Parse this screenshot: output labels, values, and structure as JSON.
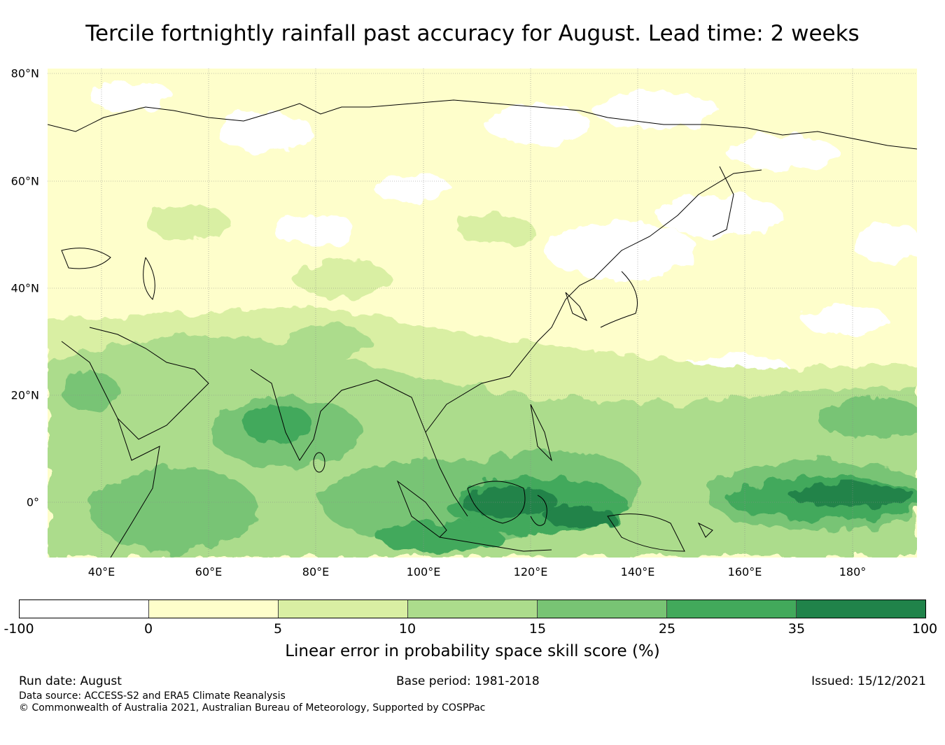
{
  "title": "Tercile fortnightly rainfall past accuracy for August. Lead time: 2 weeks",
  "map": {
    "region": "Asia and western Pacific",
    "lat_labels": [
      "80°N",
      "60°N",
      "40°N",
      "20°N",
      "0°"
    ],
    "lon_labels": [
      "40°E",
      "60°E",
      "80°E",
      "100°E",
      "120°E",
      "140°E",
      "160°E",
      "180°"
    ],
    "field_summary": "Highest skill (25-100%) over the Maritime Continent and central equatorial Pacific; moderate skill (10-25%) over India, Bay of Bengal and western Indian Ocean; low skill (0-5%) over most of northern Asia with patches below 0%."
  },
  "colorbar": {
    "ticks": [
      "-100",
      "0",
      "5",
      "10",
      "15",
      "25",
      "35",
      "100"
    ],
    "colors": [
      "#ffffff",
      "#fefecb",
      "#d9efa3",
      "#acdc8c",
      "#78c474",
      "#42a95b",
      "#20834a"
    ],
    "label": "Linear error in probability space skill score (%)"
  },
  "footer": {
    "run_date": "Run date: August",
    "base_period": "Base period: 1981-2018",
    "issued": "Issued: 15/12/2021",
    "data_source": "Data source: ACCESS-S2 and ERA5 Climate Reanalysis",
    "copyright": "© Commonwealth of Australia 2021, Australian Bureau of Meteorology, Supported by COSPPac"
  }
}
